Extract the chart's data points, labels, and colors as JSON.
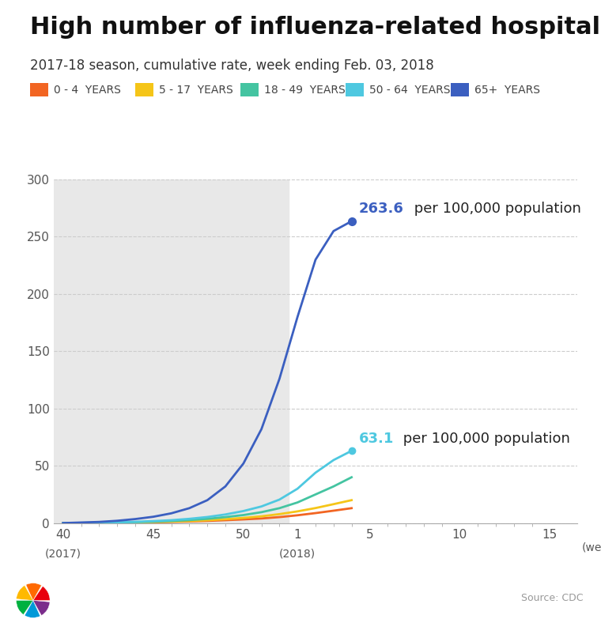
{
  "title": "High number of influenza-related hospitalizations",
  "subtitle": "2017-18 season, cumulative rate, week ending Feb. 03, 2018",
  "source": "Source: CDC",
  "legend_items": [
    {
      "label": "0 - 4  YEARS",
      "color": "#F26522"
    },
    {
      "label": "5 - 17  YEARS",
      "color": "#F5C518"
    },
    {
      "label": "18 - 49  YEARS",
      "color": "#44C4A1"
    },
    {
      "label": "50 - 64  YEARS",
      "color": "#4EC8E0"
    },
    {
      "label": "65+  YEARS",
      "color": "#3B5FC0"
    }
  ],
  "series": {
    "0-4": [
      0.0,
      0.1,
      0.2,
      0.3,
      0.5,
      0.7,
      1.0,
      1.4,
      1.9,
      2.5,
      3.2,
      4.0,
      5.2,
      6.8,
      8.7,
      10.8,
      13.0
    ],
    "5-17": [
      0.0,
      0.1,
      0.2,
      0.4,
      0.6,
      0.9,
      1.3,
      1.8,
      2.5,
      3.4,
      4.5,
      5.9,
      7.8,
      10.2,
      13.1,
      16.5,
      20.0
    ],
    "18-49": [
      0.0,
      0.1,
      0.3,
      0.5,
      0.8,
      1.2,
      1.8,
      2.6,
      3.7,
      5.2,
      7.0,
      9.5,
      13.0,
      18.0,
      25.0,
      32.0,
      40.0
    ],
    "50-64": [
      0.0,
      0.2,
      0.4,
      0.7,
      1.1,
      1.7,
      2.5,
      3.7,
      5.3,
      7.5,
      10.5,
      14.5,
      20.5,
      30.0,
      44.0,
      55.0,
      63.1
    ],
    "65+": [
      0.0,
      0.5,
      1.0,
      2.0,
      3.5,
      5.5,
      8.5,
      13.0,
      20.0,
      32.0,
      52.0,
      82.0,
      126.0,
      180.0,
      230.0,
      255.0,
      263.6
    ]
  },
  "colors": {
    "0-4": "#F26522",
    "5-17": "#F5C518",
    "18-49": "#44C4A1",
    "50-64": "#4EC8E0",
    "65+": "#3B5FC0"
  },
  "annotation_65_val": "263.6",
  "annotation_65_color": "#3B5FC0",
  "annotation_5064_val": "63.1",
  "annotation_5064_color": "#4EC8E0",
  "annotation_text": " per 100,000 population",
  "ylim": [
    0,
    300
  ],
  "yticks": [
    0,
    50,
    100,
    150,
    200,
    250,
    300
  ],
  "background_color": "#FFFFFF",
  "gray_bg_color": "#E8E8E8",
  "title_fontsize": 22,
  "subtitle_fontsize": 12,
  "legend_fontsize": 10,
  "tick_label_fontsize": 11,
  "annotation_fontsize": 13
}
